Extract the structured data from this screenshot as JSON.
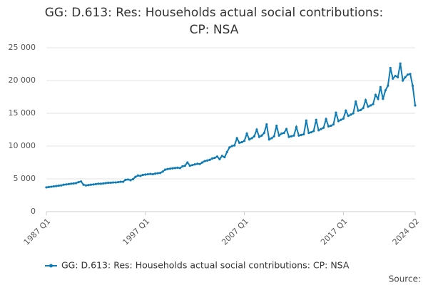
{
  "chart_data": {
    "type": "line",
    "title": "GG: D.613: Res: Households actual social contributions: CP: NSA",
    "categories": [
      "1987 Q1",
      null,
      null,
      null,
      null,
      null,
      null,
      null,
      null,
      null,
      null,
      null,
      null,
      null,
      null,
      null,
      null,
      null,
      null,
      null,
      null,
      null,
      null,
      null,
      null,
      null,
      null,
      null,
      null,
      null,
      null,
      null,
      null,
      null,
      null,
      null,
      null,
      null,
      null,
      null,
      "1997 Q1",
      null,
      null,
      null,
      null,
      null,
      null,
      null,
      null,
      null,
      null,
      null,
      null,
      null,
      null,
      null,
      null,
      null,
      null,
      null,
      null,
      null,
      null,
      null,
      null,
      null,
      null,
      null,
      null,
      null,
      null,
      null,
      null,
      null,
      null,
      null,
      null,
      null,
      null,
      null,
      "2007 Q1",
      null,
      null,
      null,
      null,
      null,
      null,
      null,
      null,
      null,
      null,
      null,
      null,
      null,
      null,
      null,
      null,
      null,
      null,
      null,
      null,
      null,
      null,
      null,
      null,
      null,
      null,
      null,
      null,
      null,
      null,
      null,
      null,
      null,
      null,
      null,
      null,
      null,
      null,
      null,
      "2017 Q1",
      null,
      null,
      null,
      null,
      null,
      null,
      null,
      null,
      null,
      null,
      null,
      null,
      null,
      null,
      null,
      null,
      null,
      null,
      null,
      null,
      null,
      null,
      null,
      null,
      null,
      null,
      null,
      null,
      "2024 Q2"
    ],
    "series": [
      {
        "name": "GG: D.613: Res: Households actual social contributions: CP: NSA",
        "color": "#0e7bb5",
        "values": [
          3700,
          3750,
          3800,
          3850,
          3900,
          3950,
          4000,
          4100,
          4150,
          4200,
          4250,
          4300,
          4350,
          4500,
          4600,
          4100,
          4000,
          4050,
          4100,
          4150,
          4200,
          4250,
          4250,
          4300,
          4350,
          4400,
          4400,
          4450,
          4450,
          4500,
          4550,
          4550,
          4850,
          4900,
          4800,
          4950,
          5300,
          5500,
          5450,
          5600,
          5650,
          5700,
          5750,
          5700,
          5800,
          5850,
          5900,
          6100,
          6400,
          6500,
          6550,
          6600,
          6650,
          6700,
          6650,
          6900,
          7000,
          7500,
          7000,
          7100,
          7200,
          7300,
          7250,
          7500,
          7700,
          7800,
          7900,
          8100,
          8200,
          8400,
          8000,
          8500,
          8300,
          9100,
          9800,
          10000,
          10100,
          11200,
          10500,
          10600,
          10800,
          11900,
          11000,
          11200,
          11500,
          12500,
          11400,
          11600,
          12000,
          13300,
          11000,
          11200,
          11500,
          13100,
          11600,
          11900,
          12000,
          12600,
          11400,
          11500,
          11600,
          12900,
          11600,
          11700,
          11800,
          13900,
          12000,
          12100,
          12300,
          14000,
          12400,
          12600,
          12800,
          14100,
          13000,
          13100,
          13300,
          15100,
          13800,
          14000,
          14200,
          15400,
          14600,
          14800,
          15000,
          16800,
          15400,
          15500,
          15800,
          17000,
          16000,
          16200,
          16400,
          17800,
          17200,
          19000,
          17200,
          18500,
          19200,
          21900,
          20300,
          20700,
          20500,
          22600,
          20000,
          20500,
          20900,
          21000,
          19200,
          16200
        ]
      }
    ],
    "ylim": [
      0,
      25000
    ],
    "yticks": [
      0,
      {
        "value": 5000,
        "label": "5 000"
      },
      {
        "value": 10000,
        "label": "10 000"
      },
      {
        "value": 15000,
        "label": "15 000"
      },
      {
        "value": 20000,
        "label": "20 000"
      },
      {
        "value": 25000,
        "label": "25 000"
      }
    ],
    "grid": true,
    "legend": "bottom",
    "source": "Source:"
  }
}
